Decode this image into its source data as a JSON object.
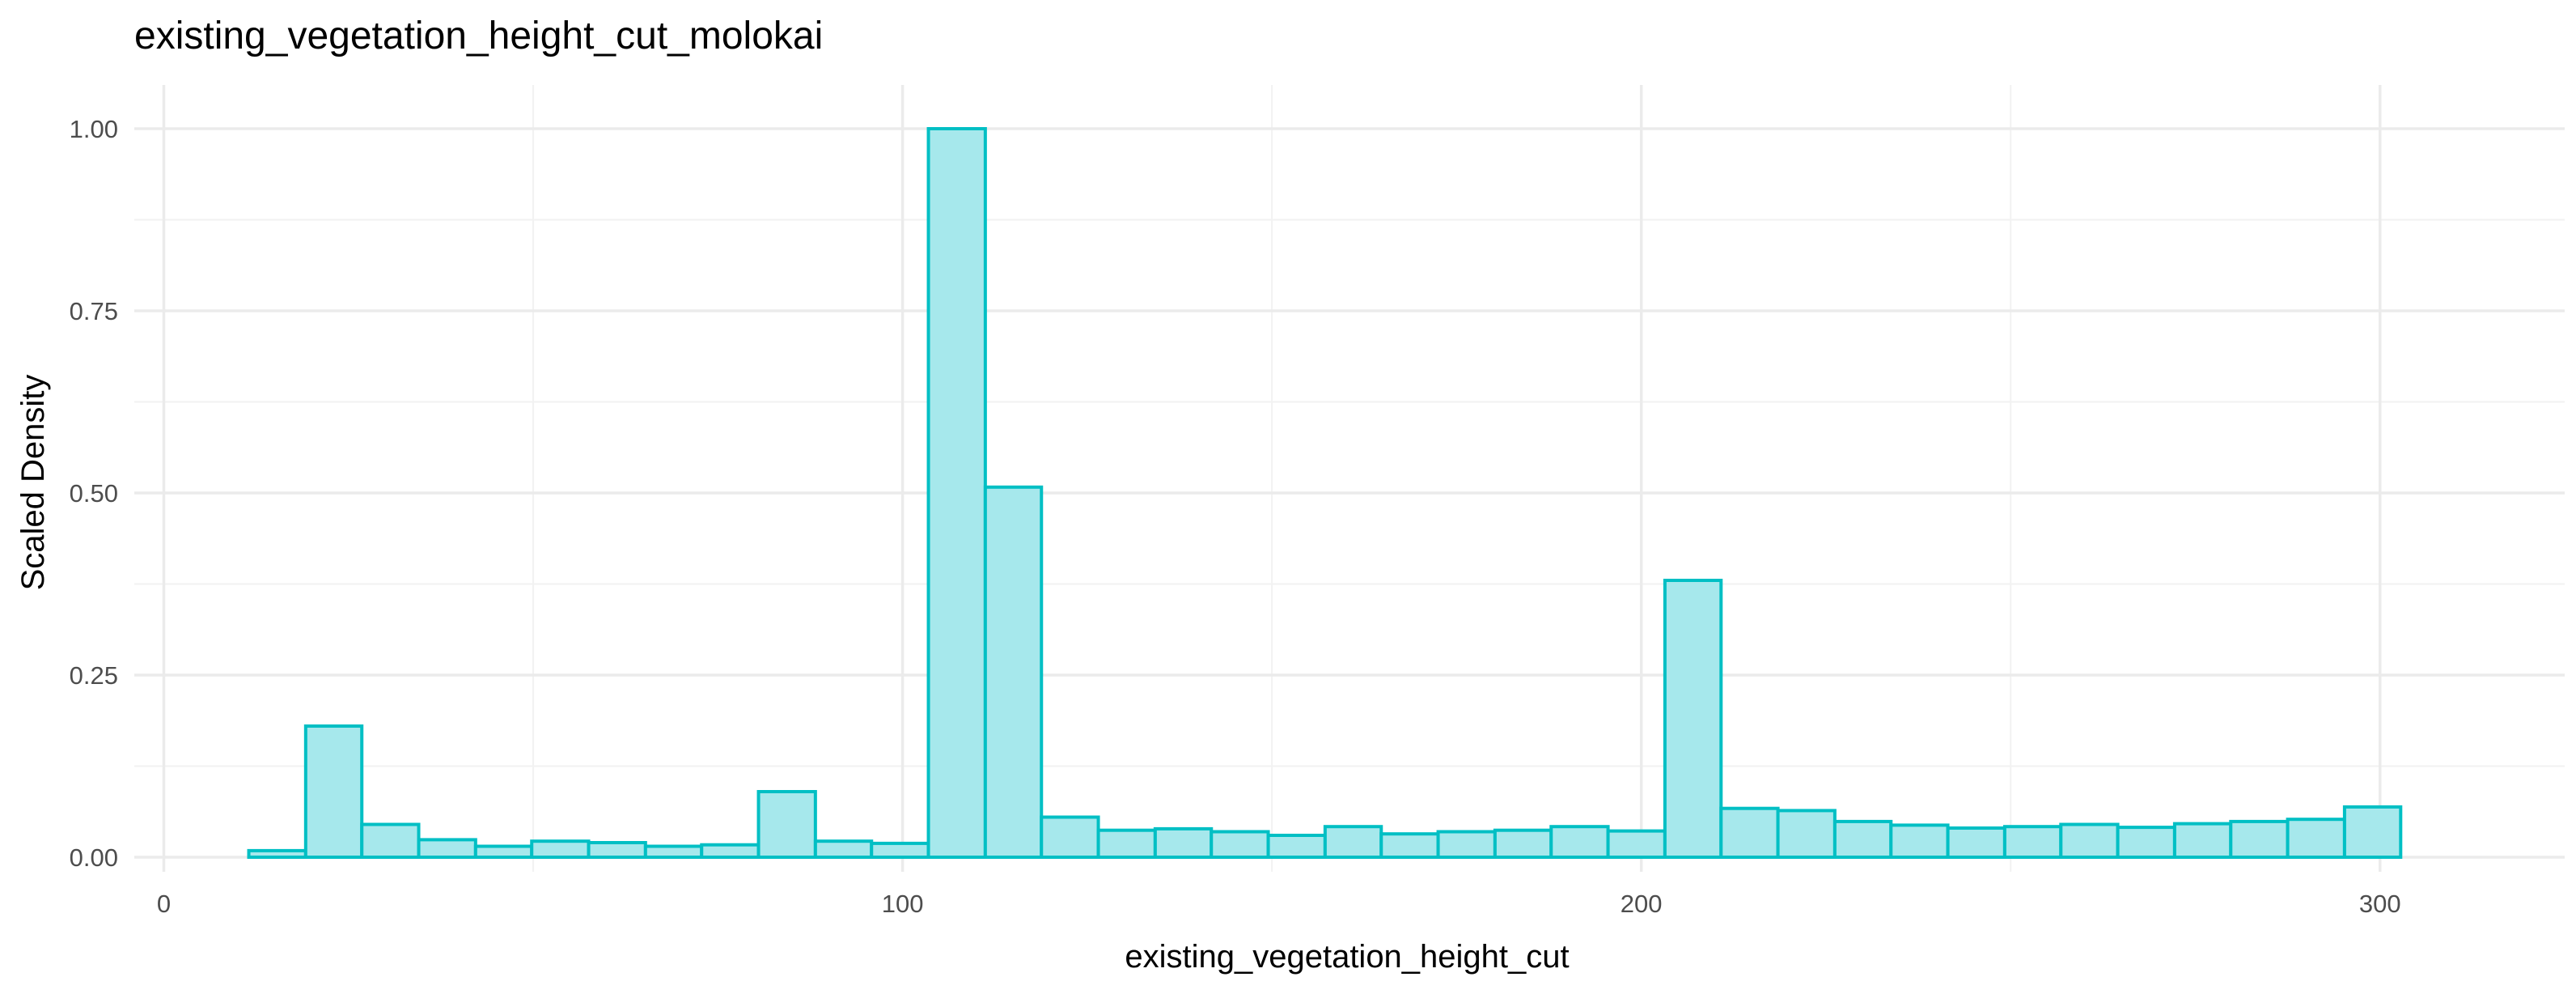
{
  "chart_data": {
    "type": "bar",
    "title": "existing_vegetation_height_cut_molokai",
    "xlabel": "existing_vegetation_height_cut",
    "ylabel": "Scaled Density",
    "xlim": [
      -4,
      325
    ],
    "ylim": [
      -0.02,
      1.06
    ],
    "x_ticks": [
      0,
      100,
      200,
      300
    ],
    "x_tick_labels": [
      "0",
      "100",
      "200",
      "300"
    ],
    "x_minor_ticks": [
      50,
      150,
      250
    ],
    "y_ticks": [
      0,
      0.25,
      0.5,
      0.75,
      1.0
    ],
    "y_tick_labels": [
      "0.00",
      "0.25",
      "0.50",
      "0.75",
      "1.00"
    ],
    "y_minor_ticks": [
      0.125,
      0.375,
      0.625,
      0.875
    ],
    "grid": true,
    "bin_width": 7.67,
    "bins": [
      {
        "x0": 11.5,
        "x1": 19.2,
        "value": 0.009
      },
      {
        "x0": 19.2,
        "x1": 26.8,
        "value": 0.18
      },
      {
        "x0": 26.8,
        "x1": 34.5,
        "value": 0.045
      },
      {
        "x0": 34.5,
        "x1": 42.2,
        "value": 0.024
      },
      {
        "x0": 42.2,
        "x1": 49.8,
        "value": 0.015
      },
      {
        "x0": 49.8,
        "x1": 57.5,
        "value": 0.022
      },
      {
        "x0": 57.5,
        "x1": 65.2,
        "value": 0.02
      },
      {
        "x0": 65.2,
        "x1": 72.8,
        "value": 0.015
      },
      {
        "x0": 72.8,
        "x1": 80.5,
        "value": 0.017
      },
      {
        "x0": 80.5,
        "x1": 88.2,
        "value": 0.09
      },
      {
        "x0": 88.2,
        "x1": 95.8,
        "value": 0.022
      },
      {
        "x0": 95.8,
        "x1": 103.5,
        "value": 0.019
      },
      {
        "x0": 103.5,
        "x1": 111.2,
        "value": 1.0
      },
      {
        "x0": 111.2,
        "x1": 118.8,
        "value": 0.508
      },
      {
        "x0": 118.8,
        "x1": 126.5,
        "value": 0.055
      },
      {
        "x0": 126.5,
        "x1": 134.2,
        "value": 0.037
      },
      {
        "x0": 134.2,
        "x1": 141.8,
        "value": 0.039
      },
      {
        "x0": 141.8,
        "x1": 149.5,
        "value": 0.035
      },
      {
        "x0": 149.5,
        "x1": 157.2,
        "value": 0.03
      },
      {
        "x0": 157.2,
        "x1": 164.8,
        "value": 0.042
      },
      {
        "x0": 164.8,
        "x1": 172.5,
        "value": 0.032
      },
      {
        "x0": 172.5,
        "x1": 180.2,
        "value": 0.035
      },
      {
        "x0": 180.2,
        "x1": 187.8,
        "value": 0.037
      },
      {
        "x0": 187.8,
        "x1": 195.5,
        "value": 0.042
      },
      {
        "x0": 195.5,
        "x1": 203.2,
        "value": 0.036
      },
      {
        "x0": 203.2,
        "x1": 210.8,
        "value": 0.38
      },
      {
        "x0": 210.8,
        "x1": 218.5,
        "value": 0.067
      },
      {
        "x0": 218.5,
        "x1": 226.2,
        "value": 0.064
      },
      {
        "x0": 226.2,
        "x1": 233.8,
        "value": 0.049
      },
      {
        "x0": 233.8,
        "x1": 241.5,
        "value": 0.044
      },
      {
        "x0": 241.5,
        "x1": 249.2,
        "value": 0.04
      },
      {
        "x0": 249.2,
        "x1": 256.8,
        "value": 0.042
      },
      {
        "x0": 256.8,
        "x1": 264.5,
        "value": 0.045
      },
      {
        "x0": 264.5,
        "x1": 272.2,
        "value": 0.041
      },
      {
        "x0": 272.2,
        "x1": 279.8,
        "value": 0.046
      },
      {
        "x0": 279.8,
        "x1": 287.5,
        "value": 0.049
      },
      {
        "x0": 287.5,
        "x1": 295.2,
        "value": 0.052
      },
      {
        "x0": 295.2,
        "x1": 302.8,
        "value": 0.069
      }
    ],
    "colors": {
      "bar_fill": "#a6e8ec",
      "bar_stroke": "#00bfc4"
    }
  }
}
